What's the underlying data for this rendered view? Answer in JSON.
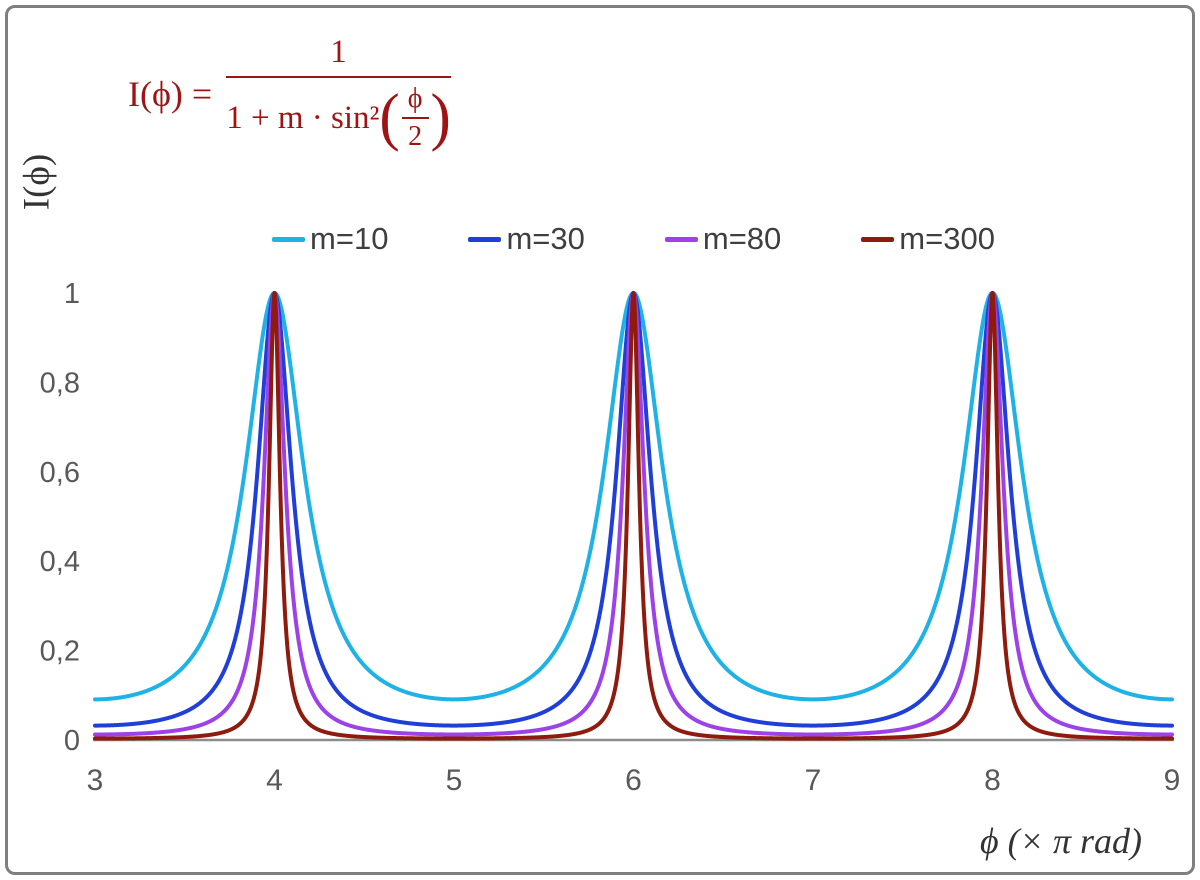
{
  "frame": {
    "border_color": "#7f7f7f",
    "background": "#ffffff"
  },
  "formula": {
    "color": "#9e1414",
    "lhs": "I(ϕ) =",
    "numerator": "1",
    "den_prefix": "1 + m · sin²",
    "inner_numerator": "ϕ",
    "inner_denominator": "2",
    "left_paren": "(",
    "right_paren": ")"
  },
  "axes": {
    "x_label": "ϕ  (× π rad)",
    "y_label": "I(ϕ)",
    "tick_color": "#595959",
    "axis_color": "#8c8c8c",
    "label_color": "#333333"
  },
  "chart_data": {
    "type": "line",
    "title": "",
    "xlabel": "ϕ (× π rad)",
    "ylabel": "I(ϕ)",
    "function": "I(ϕ) = 1 / (1 + m·sin²(ϕ/2)), ϕ expressed in multiples of π rad",
    "x_range": [
      3,
      9
    ],
    "y_range": [
      0,
      1
    ],
    "x_ticks": [
      3,
      4,
      5,
      6,
      7,
      8,
      9
    ],
    "y_ticks": [
      0,
      0.2,
      0.4,
      0.6,
      0.8,
      1
    ],
    "y_tick_labels": [
      "0",
      "0,2",
      "0,4",
      "0,6",
      "0,8",
      "1"
    ],
    "grid": false,
    "legend_position": "top-center",
    "peaks_at_x": [
      4,
      6,
      8
    ],
    "peak_value": 1,
    "sample_step_x": 0.002,
    "series": [
      {
        "name": "m=10",
        "m": 10,
        "color": "#1fb2e6",
        "value_at_x3": 0.0909
      },
      {
        "name": "m=30",
        "m": 30,
        "color": "#1f3fd8",
        "value_at_x3": 0.0323
      },
      {
        "name": "m=80",
        "m": 80,
        "color": "#9c42e8",
        "value_at_x3": 0.0123
      },
      {
        "name": "m=300",
        "m": 300,
        "color": "#8e1b0e",
        "value_at_x3": 0.0033
      }
    ]
  }
}
